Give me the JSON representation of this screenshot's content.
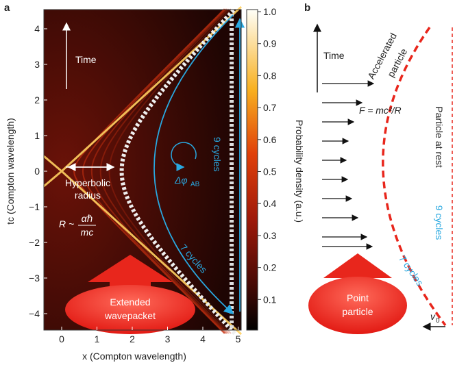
{
  "panel_a": {
    "label": "a",
    "x_axis_label": "x (Compton wavelength)",
    "y_axis_label": "tc (Compton wavelength)",
    "xticks": [
      "0",
      "1",
      "2",
      "3",
      "4",
      "5"
    ],
    "yticks": [
      "4",
      "3",
      "2",
      "1",
      "0",
      "−1",
      "−2",
      "−3",
      "−4"
    ],
    "colorbar_ticks": [
      "1.0",
      "0.9",
      "0.8",
      "0.7",
      "0.6",
      "0.5",
      "0.4",
      "0.3",
      "0.2",
      "0.1"
    ],
    "colorbar_label": "Probability density (a.u.)",
    "time_label": "Time",
    "radius_label": [
      "Hyperbolic",
      "radius"
    ],
    "formula": {
      "lhs": "R ~",
      "numerator": "αℏ",
      "denominator": "mc"
    },
    "phase": {
      "symbol": "Δφ",
      "subscript": "AB"
    },
    "cycles_upper": "9 cycles",
    "cycles_lower": "7 cycles",
    "wavepacket_label": [
      "Extended",
      "wavepacket"
    ]
  },
  "panel_b": {
    "label": "b",
    "time_label": "Time",
    "accelerated_label": [
      "Accelerated",
      "particle"
    ],
    "force_label": "F = mc²/R",
    "rest_label": "Particle at rest",
    "cycles_rest": "9 cycles",
    "cycles_moving": "7 cycles",
    "point_label": [
      "Point",
      "particle"
    ],
    "velocity": {
      "symbol": "v",
      "subscript": "0"
    }
  }
}
